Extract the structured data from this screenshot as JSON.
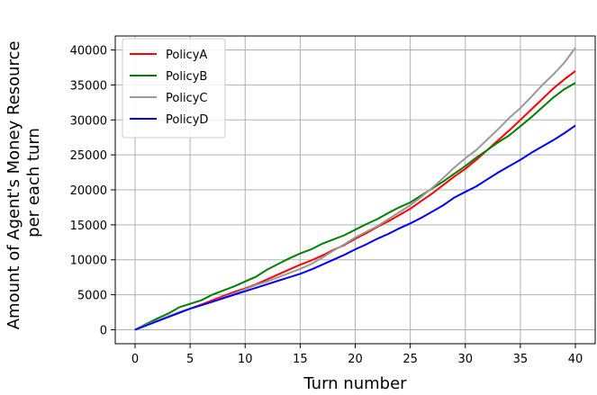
{
  "chart_data": {
    "type": "line",
    "xlabel": "Turn number",
    "ylabel": "Amount of Agent's Money Resource per each turn",
    "ylabel_lines": [
      "Amount of Agent's Money Resource",
      "per each turn"
    ],
    "xlim": [
      -1.8,
      41.8
    ],
    "ylim": [
      -2000,
      42000
    ],
    "xticks": [
      0,
      5,
      10,
      15,
      20,
      25,
      30,
      35,
      40
    ],
    "yticks": [
      0,
      5000,
      10000,
      15000,
      20000,
      25000,
      30000,
      35000,
      40000
    ],
    "grid": true,
    "legend_position": "upper-left",
    "x": [
      0,
      1,
      2,
      3,
      4,
      5,
      6,
      7,
      8,
      9,
      10,
      11,
      12,
      13,
      14,
      15,
      16,
      17,
      18,
      19,
      20,
      21,
      22,
      23,
      24,
      25,
      26,
      27,
      28,
      29,
      30,
      31,
      32,
      33,
      34,
      35,
      36,
      37,
      38,
      39,
      40
    ],
    "series": [
      {
        "name": "PolicyA",
        "color": "#ff0000",
        "values": [
          0,
          700,
          1300,
          1900,
          2500,
          3000,
          3600,
          4200,
          4800,
          5400,
          5900,
          6500,
          7200,
          7900,
          8600,
          9300,
          9900,
          10600,
          11400,
          12100,
          13000,
          13800,
          14700,
          15500,
          16400,
          17300,
          18400,
          19500,
          20700,
          21900,
          23000,
          24300,
          25700,
          27100,
          28500,
          30000,
          31500,
          33000,
          34500,
          35800,
          37000
        ]
      },
      {
        "name": "PolicyB",
        "color": "#008000",
        "values": [
          0,
          800,
          1600,
          2300,
          3200,
          3700,
          4200,
          5000,
          5600,
          6200,
          6900,
          7600,
          8600,
          9400,
          10200,
          10900,
          11500,
          12300,
          12900,
          13500,
          14300,
          15100,
          15800,
          16700,
          17500,
          18200,
          19200,
          20200,
          21200,
          22300,
          23400,
          24600,
          25700,
          26800,
          27800,
          29100,
          30400,
          31800,
          33200,
          34400,
          35300
        ]
      },
      {
        "name": "PolicyC",
        "color": "#999999",
        "values": [
          0,
          700,
          1300,
          1900,
          2500,
          3000,
          3500,
          4000,
          4600,
          5200,
          5800,
          6400,
          6900,
          7500,
          8100,
          8700,
          9400,
          10300,
          11300,
          12200,
          13200,
          14000,
          14800,
          15800,
          16800,
          17800,
          19000,
          20300,
          21700,
          23200,
          24500,
          25700,
          27200,
          28700,
          30300,
          31700,
          33300,
          35000,
          36500,
          38200,
          40300
        ]
      },
      {
        "name": "PolicyD",
        "color": "#0000ff",
        "values": [
          0,
          600,
          1200,
          1800,
          2400,
          3000,
          3500,
          4000,
          4500,
          5000,
          5500,
          6000,
          6500,
          7000,
          7500,
          8000,
          8600,
          9300,
          10000,
          10700,
          11500,
          12200,
          13000,
          13700,
          14500,
          15200,
          16000,
          16900,
          17800,
          18900,
          19700,
          20500,
          21500,
          22500,
          23400,
          24300,
          25300,
          26200,
          27100,
          28100,
          29200
        ]
      }
    ]
  }
}
